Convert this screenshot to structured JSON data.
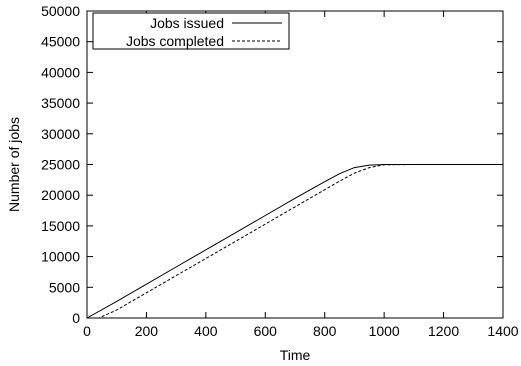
{
  "chart_data": {
    "type": "line",
    "title": "",
    "xlabel": "Time",
    "ylabel": "Number of jobs",
    "xlim": [
      0,
      1400
    ],
    "ylim": [
      0,
      50000
    ],
    "x_ticks": [
      0,
      200,
      400,
      600,
      800,
      1000,
      1200,
      1400
    ],
    "y_ticks": [
      0,
      5000,
      10000,
      15000,
      20000,
      25000,
      30000,
      35000,
      40000,
      45000,
      50000
    ],
    "x_tick_labels": [
      "0",
      "200",
      "400",
      "600",
      "800",
      "1000",
      "1200",
      "1400"
    ],
    "y_tick_labels": [
      "0",
      "5000",
      "10000",
      "15000",
      "20000",
      "25000",
      "30000",
      "35000",
      "40000",
      "45000",
      "50000"
    ],
    "grid": false,
    "legend_position": "top-left",
    "series": [
      {
        "name": "Jobs issued",
        "style": "solid",
        "color": "#000000",
        "x": [
          0,
          100,
          200,
          300,
          400,
          500,
          600,
          700,
          800,
          850,
          900,
          950,
          1000,
          1100,
          1200,
          1300,
          1400
        ],
        "y": [
          0,
          2700,
          5500,
          8300,
          11100,
          13900,
          16700,
          19500,
          22200,
          23500,
          24500,
          24900,
          25000,
          25000,
          25000,
          25000,
          25000
        ]
      },
      {
        "name": "Jobs completed",
        "style": "dashed",
        "color": "#000000",
        "x": [
          0,
          40,
          100,
          200,
          300,
          400,
          500,
          600,
          700,
          800,
          850,
          900,
          950,
          1000,
          1100,
          1200,
          1300,
          1400
        ],
        "y": [
          0,
          0,
          1300,
          4100,
          6900,
          9700,
          12500,
          15300,
          18100,
          20900,
          22300,
          23600,
          24500,
          24950,
          25000,
          25000,
          25000,
          25000
        ]
      }
    ]
  }
}
